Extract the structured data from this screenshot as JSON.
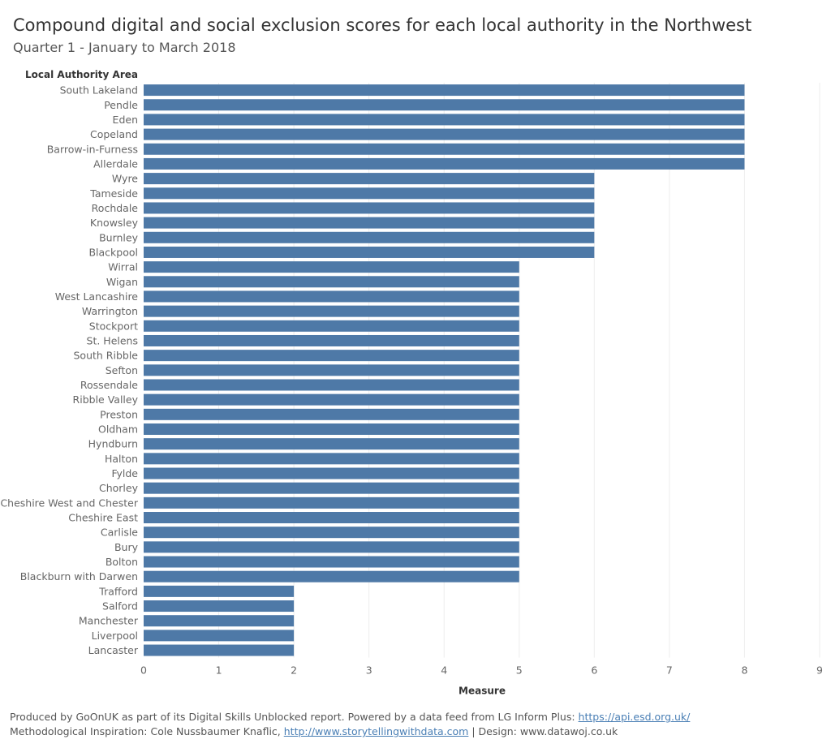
{
  "title": "Compound digital and social exclusion scores for each local authority in the Northwest",
  "subtitle": "Quarter 1 - January to March 2018",
  "colors": {
    "bar": "#4e79a7",
    "grid": "#eeeeee",
    "axis_text": "#666666",
    "link": "#4a7fb5"
  },
  "chart_data": {
    "type": "bar",
    "orientation": "horizontal",
    "row_header": "Local Authority Area",
    "xlabel": "Measure",
    "xlim": [
      0,
      9
    ],
    "xticks": [
      0,
      1,
      2,
      3,
      4,
      5,
      6,
      7,
      8,
      9
    ],
    "grid": true,
    "categories": [
      "South Lakeland",
      "Pendle",
      "Eden",
      "Copeland",
      "Barrow-in-Furness",
      "Allerdale",
      "Wyre",
      "Tameside",
      "Rochdale",
      "Knowsley",
      "Burnley",
      "Blackpool",
      "Wirral",
      "Wigan",
      "West Lancashire",
      "Warrington",
      "Stockport",
      "St. Helens",
      "South Ribble",
      "Sefton",
      "Rossendale",
      "Ribble Valley",
      "Preston",
      "Oldham",
      "Hyndburn",
      "Halton",
      "Fylde",
      "Chorley",
      "Cheshire West and Chester",
      "Cheshire East",
      "Carlisle",
      "Bury",
      "Bolton",
      "Blackburn with Darwen",
      "Trafford",
      "Salford",
      "Manchester",
      "Liverpool",
      "Lancaster"
    ],
    "values": [
      8,
      8,
      8,
      8,
      8,
      8,
      6,
      6,
      6,
      6,
      6,
      6,
      5,
      5,
      5,
      5,
      5,
      5,
      5,
      5,
      5,
      5,
      5,
      5,
      5,
      5,
      5,
      5,
      5,
      5,
      5,
      5,
      5,
      5,
      2,
      2,
      2,
      2,
      2
    ]
  },
  "footer": {
    "line1_text": "Produced by GoOnUK as part of its Digital Skills Unblocked report. Powered by a data feed from LG Inform Plus: ",
    "line1_link": "https://api.esd.org.uk/",
    "line2_text": "Methodological Inspiration: Cole Nussbaumer Knaflic, ",
    "line2_link": "http://www.storytellingwithdata.com",
    "line2_suffix": " | Design: www.datawoj.co.uk"
  }
}
